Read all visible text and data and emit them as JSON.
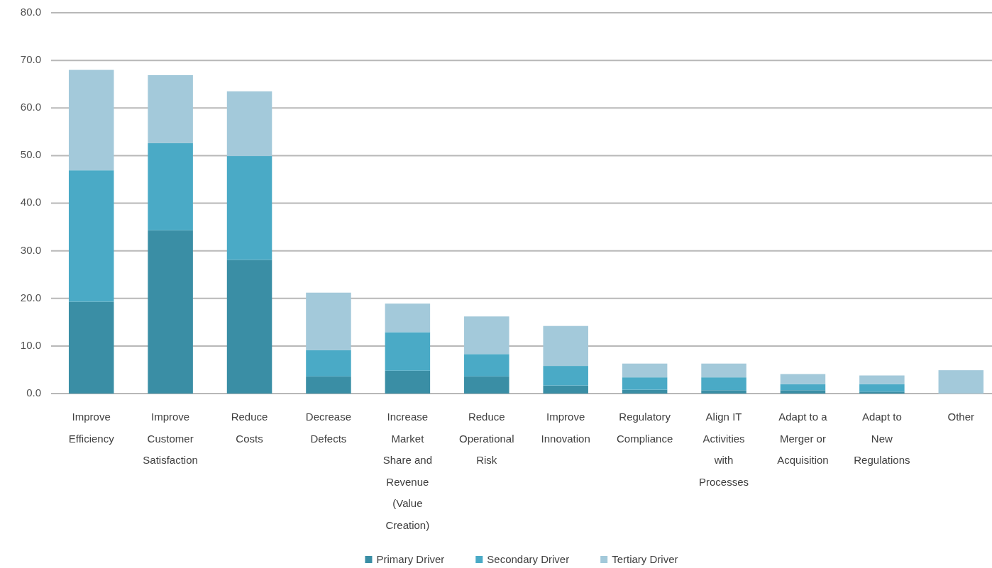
{
  "chart_data": {
    "type": "bar",
    "stacked": true,
    "categories": [
      "Improve Efficiency",
      "Improve Customer Satisfaction",
      "Reduce Costs",
      "Decrease Defects",
      "Increase Market Share and Revenue (Value Creation)",
      "Reduce Operational Risk",
      "Improve Innovation",
      "Regulatory Compliance",
      "Align IT Activities with Processes",
      "Adapt to a Merger or Acquisition",
      "Adapt to New Regulations",
      "Other"
    ],
    "series": [
      {
        "name": "Primary Driver",
        "color": "#3a8ea5",
        "values": [
          19.3,
          34.3,
          28.1,
          3.6,
          4.8,
          3.6,
          1.7,
          0.8,
          0.7,
          0.7,
          0.4,
          0
        ]
      },
      {
        "name": "Secondary Driver",
        "color": "#4aaac6",
        "values": [
          27.6,
          18.3,
          21.8,
          5.5,
          8.1,
          4.7,
          4.1,
          2.6,
          2.7,
          1.3,
          1.6,
          0
        ]
      },
      {
        "name": "Tertiary Driver",
        "color": "#a3c9da",
        "values": [
          21.1,
          14.3,
          13.6,
          12.1,
          6.0,
          7.9,
          8.4,
          2.9,
          2.9,
          2.1,
          1.8,
          4.9
        ]
      }
    ],
    "ylim": [
      0,
      80
    ],
    "yticks": [
      {
        "value": 0,
        "label": "0.0"
      },
      {
        "value": 10,
        "label": "10.0"
      },
      {
        "value": 20,
        "label": "20.0"
      },
      {
        "value": 30,
        "label": "30.0"
      },
      {
        "value": 40,
        "label": "40.0"
      },
      {
        "value": 50,
        "label": "50.0"
      },
      {
        "value": 60,
        "label": "60.0"
      },
      {
        "value": 70,
        "label": "70.0"
      },
      {
        "value": 80,
        "label": "80.0"
      }
    ],
    "grid": "y",
    "legend": "bottom"
  }
}
